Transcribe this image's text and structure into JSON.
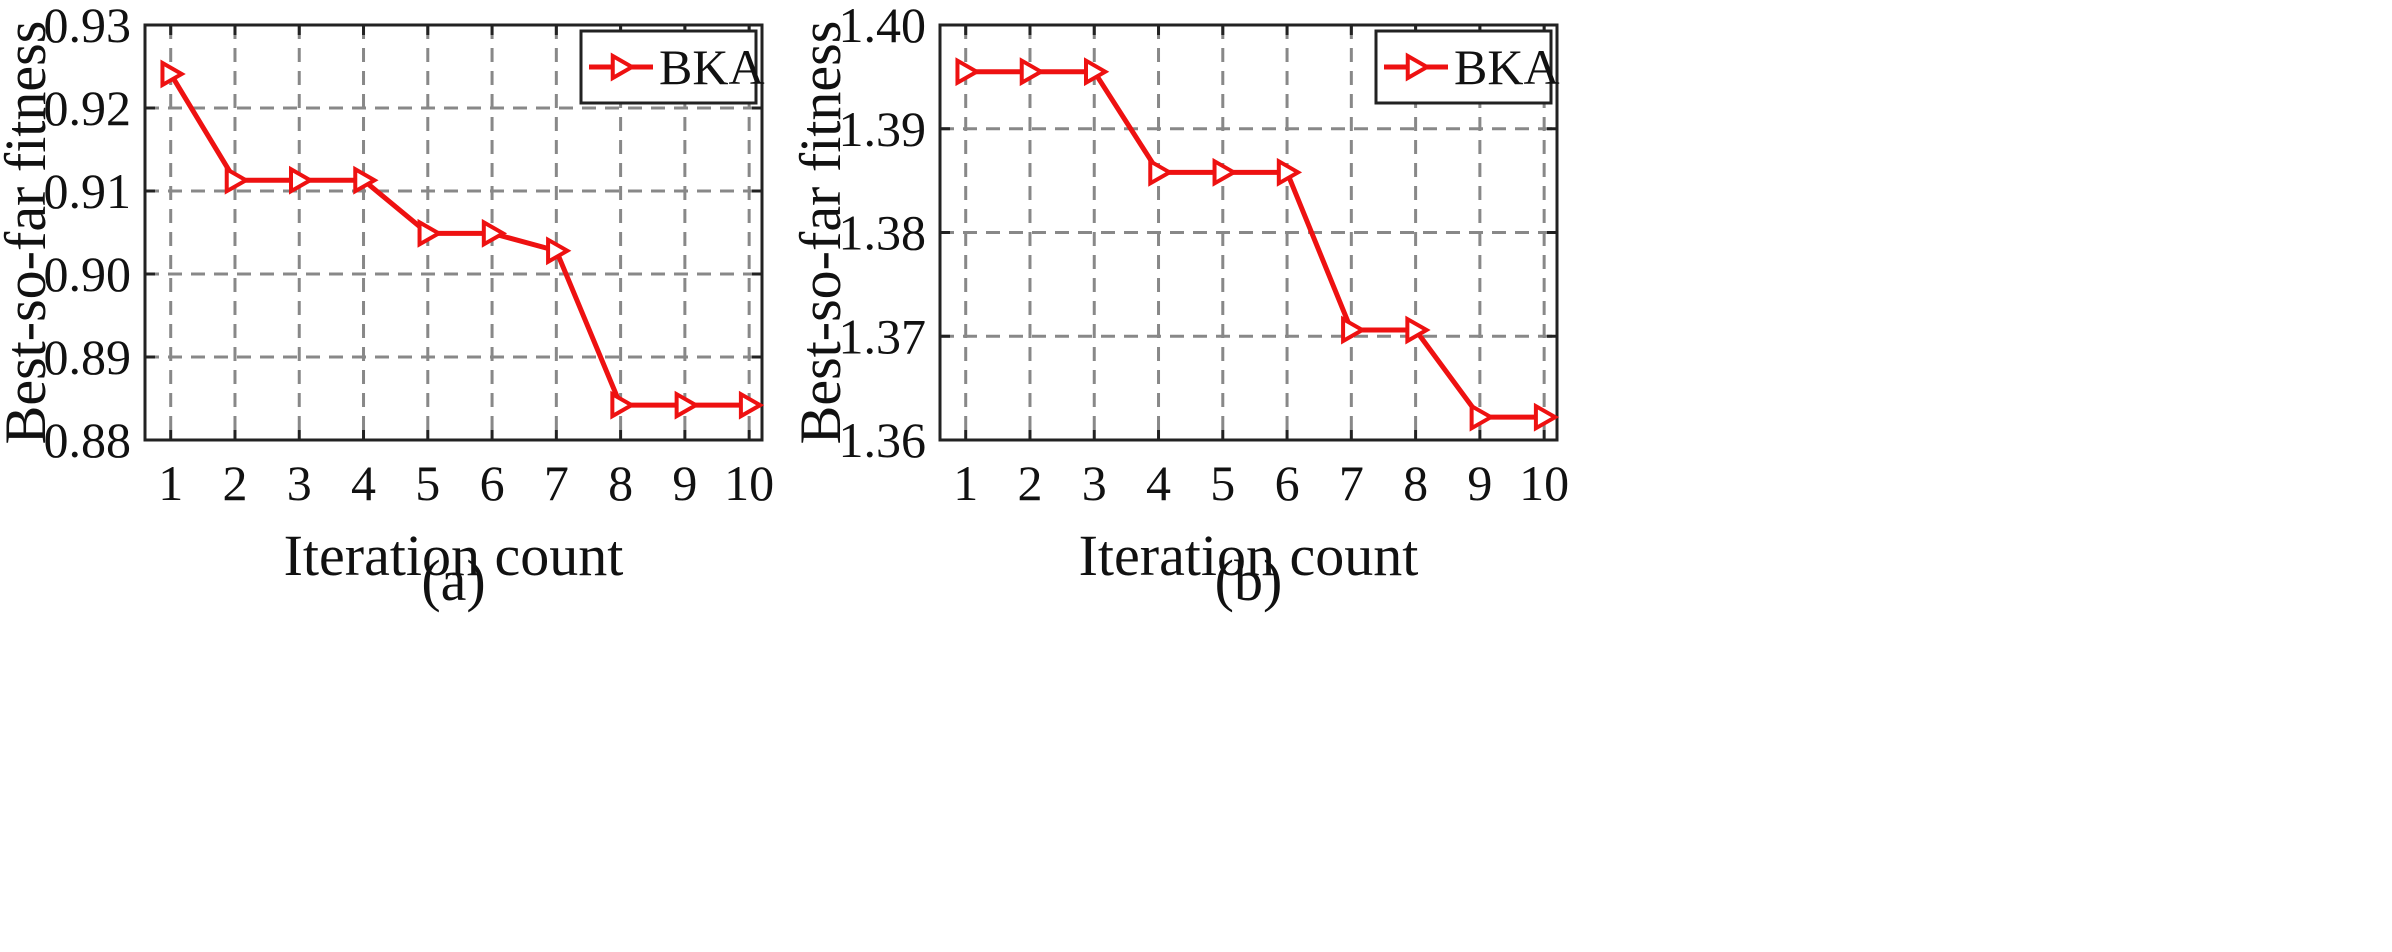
{
  "colors": {
    "series": "#ee1111",
    "axis": "#222222",
    "grid": "#888888"
  },
  "chart_data": [
    {
      "type": "line",
      "caption": "(a)",
      "xlabel": "Iteration count",
      "ylabel": "Best-so-far fitness",
      "x": [
        1,
        2,
        3,
        4,
        5,
        6,
        7,
        8,
        9,
        10
      ],
      "xlim": [
        0.6,
        10.2
      ],
      "ylim": [
        0.88,
        0.93
      ],
      "yticks": [
        0.88,
        0.89,
        0.9,
        0.91,
        0.92,
        0.93
      ],
      "ytick_labels": [
        "0.88",
        "0.89",
        "0.90",
        "0.91",
        "0.92",
        "0.93"
      ],
      "xtick_labels": [
        "1",
        "2",
        "3",
        "4",
        "5",
        "6",
        "7",
        "8",
        "9",
        "10"
      ],
      "grid": true,
      "legend_position": "top-right",
      "series": [
        {
          "name": "BKA",
          "marker": "right-triangle",
          "values": [
            0.9241,
            0.9113,
            0.9113,
            0.9113,
            0.9049,
            0.9049,
            0.9028,
            0.8842,
            0.8842,
            0.8842
          ]
        }
      ]
    },
    {
      "type": "line",
      "caption": "(b)",
      "xlabel": "Iteration count",
      "ylabel": "Best-so-far fitness",
      "x": [
        1,
        2,
        3,
        4,
        5,
        6,
        7,
        8,
        9,
        10
      ],
      "xlim": [
        0.6,
        10.2
      ],
      "ylim": [
        1.36,
        1.4
      ],
      "yticks": [
        1.36,
        1.37,
        1.38,
        1.39,
        1.4
      ],
      "ytick_labels": [
        "1.36",
        "1.37",
        "1.38",
        "1.39",
        "1.40"
      ],
      "xtick_labels": [
        "1",
        "2",
        "3",
        "4",
        "5",
        "6",
        "7",
        "8",
        "9",
        "10"
      ],
      "grid": true,
      "legend_position": "top-right",
      "series": [
        {
          "name": "BKA",
          "marker": "right-triangle",
          "values": [
            1.3955,
            1.3955,
            1.3955,
            1.3858,
            1.3858,
            1.3858,
            1.3706,
            1.3706,
            1.3622,
            1.3622
          ]
        }
      ]
    }
  ]
}
